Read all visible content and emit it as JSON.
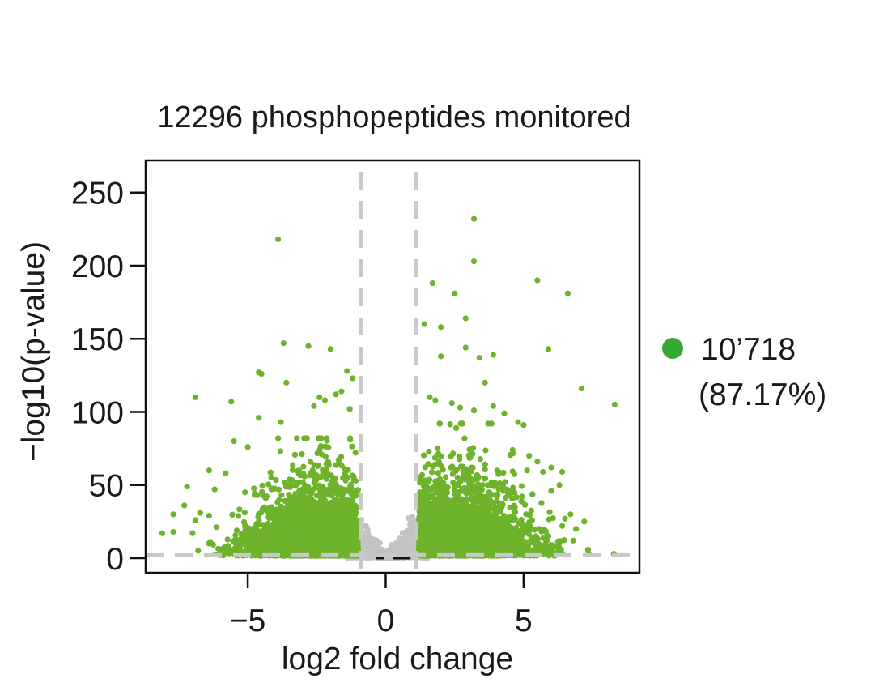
{
  "chart_data": {
    "type": "scatter",
    "title": "12296 phosphopeptides monitored",
    "xlabel": "log2 fold change",
    "ylabel": "−log10(p-value)",
    "xlim": [
      -8.7,
      9.2
    ],
    "ylim": [
      -10,
      272
    ],
    "x_ticks": [
      -5,
      0,
      5
    ],
    "x_tick_labels": [
      "−5",
      "0",
      "5"
    ],
    "y_ticks": [
      0,
      50,
      100,
      150,
      200,
      250
    ],
    "y_tick_labels": [
      "0",
      "50",
      "100",
      "150",
      "200",
      "250"
    ],
    "thresholds": {
      "x": [
        -0.9,
        1.1
      ],
      "y": 2,
      "style": "dashed",
      "color": "#c8c8c8"
    },
    "grid": false,
    "legend": {
      "position": "right",
      "items": [
        {
          "label": "10’718",
          "sublabel": "(87.17%)",
          "color": "#37a935"
        }
      ]
    },
    "series": [
      {
        "role": "significant",
        "color": "#6db32b",
        "points": [
          [
            3.2,
            232
          ],
          [
            -3.9,
            218
          ],
          [
            3.2,
            203
          ],
          [
            5.5,
            190
          ],
          [
            1.7,
            188
          ],
          [
            6.6,
            181
          ],
          [
            2.5,
            181
          ],
          [
            2.9,
            164
          ],
          [
            1.4,
            160
          ],
          [
            2.0,
            158
          ],
          [
            -3.7,
            147
          ],
          [
            -2.8,
            145
          ],
          [
            -2.0,
            143
          ],
          [
            5.9,
            143
          ],
          [
            2.9,
            144
          ],
          [
            3.9,
            139
          ],
          [
            2.0,
            138
          ],
          [
            3.4,
            137
          ],
          [
            -4.6,
            127
          ],
          [
            -4.5,
            126
          ],
          [
            -1.4,
            128
          ],
          [
            -1.2,
            123
          ],
          [
            -3.6,
            120
          ],
          [
            3.6,
            120
          ],
          [
            7.1,
            116
          ],
          [
            -6.9,
            110
          ],
          [
            -5.6,
            107
          ],
          [
            8.3,
            105
          ],
          [
            -1.6,
            114
          ],
          [
            -1.8,
            112
          ],
          [
            -2.4,
            110
          ],
          [
            -2.2,
            108
          ],
          [
            -2.6,
            104
          ],
          [
            -1.3,
            102
          ],
          [
            1.6,
            110
          ],
          [
            1.8,
            108
          ],
          [
            2.4,
            106
          ],
          [
            2.7,
            103
          ],
          [
            3.2,
            101
          ],
          [
            3.9,
            104
          ],
          [
            4.3,
            99
          ],
          [
            -4.6,
            96
          ],
          [
            -3.8,
            93
          ],
          [
            4.8,
            93
          ],
          [
            5.0,
            91
          ],
          [
            -5.5,
            80
          ],
          [
            -5.0,
            76
          ],
          [
            4.6,
            74
          ],
          [
            5.2,
            70
          ],
          [
            5.5,
            66
          ],
          [
            -6.4,
            60
          ],
          [
            -5.8,
            58
          ],
          [
            6.0,
            62
          ],
          [
            6.4,
            59
          ],
          [
            5.7,
            59
          ],
          [
            -7.2,
            49
          ],
          [
            -6.2,
            47
          ],
          [
            6.3,
            50
          ],
          [
            6.0,
            46
          ],
          [
            -5.1,
            45
          ],
          [
            -7.3,
            36
          ],
          [
            -7.7,
            30
          ],
          [
            -6.4,
            29
          ],
          [
            -6.9,
            26
          ],
          [
            6.7,
            30
          ],
          [
            6.5,
            27
          ],
          [
            7.2,
            25
          ],
          [
            6.9,
            20
          ],
          [
            -8.1,
            17
          ],
          [
            -7.7,
            18
          ],
          [
            -7.0,
            17
          ],
          [
            -6.8,
            5
          ],
          [
            6.4,
            22
          ],
          [
            6.8,
            12
          ],
          [
            5.9,
            15
          ]
        ],
        "density_clusters": [
          {
            "x_center": -2.5,
            "x_spread": 1.25,
            "x_max": -1.0,
            "y_max": 82,
            "count": 3800,
            "y_decay": 14
          },
          {
            "x_center": 2.7,
            "x_spread": 1.3,
            "x_min": 1.2,
            "y_max": 92,
            "count": 4300,
            "y_decay": 15
          }
        ]
      },
      {
        "role": "not significant",
        "color": "#c4c2c4",
        "density_clusters": [
          {
            "x_min": -1.5,
            "x_max": 1.7,
            "y_max": 32,
            "count": 900
          }
        ]
      }
    ]
  }
}
